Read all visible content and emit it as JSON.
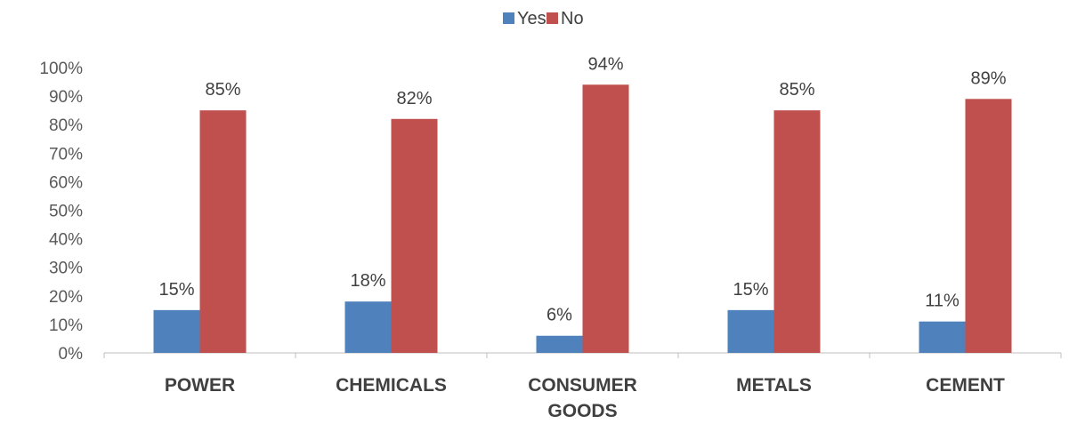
{
  "chart_data": {
    "type": "bar",
    "categories": [
      [
        "POWER"
      ],
      [
        "CHEMICALS"
      ],
      [
        "CONSUMER",
        "GOODS"
      ],
      [
        "METALS"
      ],
      [
        "CEMENT"
      ]
    ],
    "series": [
      {
        "name": "Yes",
        "color": "#4f81bd",
        "values": [
          15,
          18,
          6,
          15,
          11
        ],
        "labels": [
          "15%",
          "18%",
          "6%",
          "15%",
          "11%"
        ]
      },
      {
        "name": "No",
        "color": "#c0504d",
        "values": [
          85,
          82,
          94,
          85,
          89
        ],
        "labels": [
          "85%",
          "82%",
          "94%",
          "85%",
          "89%"
        ]
      }
    ],
    "ylim": [
      0,
      100
    ],
    "yticks": [
      0,
      10,
      20,
      30,
      40,
      50,
      60,
      70,
      80,
      90,
      100
    ],
    "ytick_labels": [
      "0%",
      "10%",
      "20%",
      "30%",
      "40%",
      "50%",
      "60%",
      "70%",
      "80%",
      "90%",
      "100%"
    ],
    "legend_position": "top-center",
    "grid": false
  }
}
